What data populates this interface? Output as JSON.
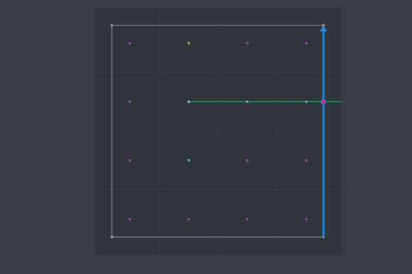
{
  "editor": {
    "colors": {
      "background": "#383d46",
      "canvas_area": "#30343b",
      "grid_line": "#3a3f47",
      "border": "#8c8f95",
      "corner_point": "#8a8f9b",
      "grid_point": "#c040d8",
      "point_olive": "#a89a3a",
      "point_lavender": "#a8a2e8",
      "point_teal": "#2fa7ad",
      "guide_line": "#1f9e5a",
      "axis_arrow": "#1e88e5",
      "marker_fill": "#e0207a",
      "marker_stroke": "#1e88e5"
    },
    "icons": {
      "arrow_head": "arrow-up-icon",
      "point_marker": "circle-icon"
    }
  }
}
